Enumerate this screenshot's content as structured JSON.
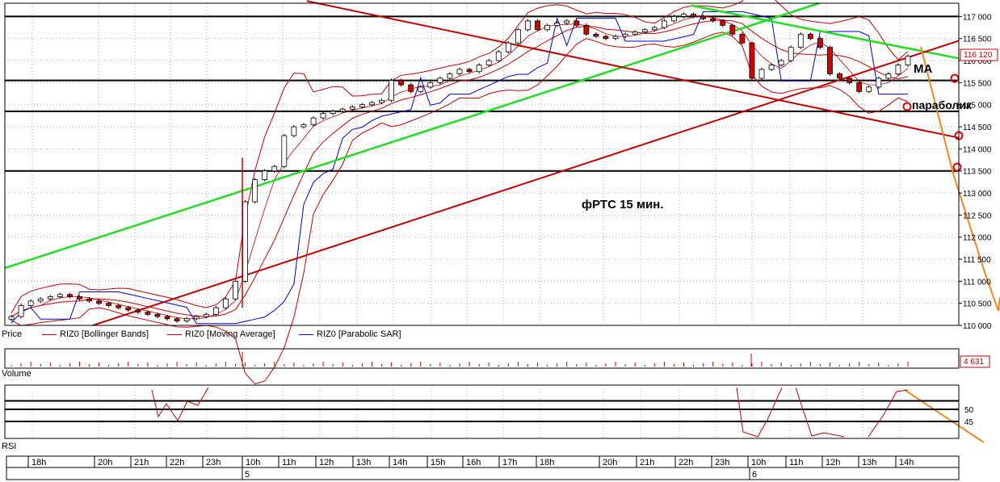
{
  "legend": {
    "price": "Price",
    "bollinger": "RIZ0 [Bollinger Bands]",
    "ma": "RIZ0 [Moving Average]",
    "sar": "RIZ0 [Parabolic SAR]"
  },
  "panes": {
    "volume": "Volume",
    "rsi": "RSI"
  },
  "annotations": {
    "title": "фРТС   15 мин.",
    "ma": "МА",
    "parabolic": "параболик"
  },
  "colors": {
    "up": "#ffffff",
    "down": "#d40000",
    "bollinger": "#c00000",
    "sar": "#0000cc",
    "green_trend": "#22dd22",
    "red_trend": "#c00000",
    "orange_arrow": "#ee8822"
  },
  "price_axis": {
    "ticks": [
      "117 000",
      "116 500",
      "116 000",
      "115 500",
      "115 000",
      "114 500",
      "114 000",
      "113 500",
      "113 000",
      "112 500",
      "112 000",
      "111 500",
      "111 000",
      "110 500",
      "110 000"
    ],
    "last_price_label": "116 120"
  },
  "volume_axis": {
    "last_label": "4 631"
  },
  "rsi_axis": {
    "ticks": [
      "50",
      "45"
    ]
  },
  "time_axis": {
    "hours": [
      "18h",
      "20h",
      "21h",
      "22h",
      "23h",
      "10h",
      "11h",
      "12h",
      "13h",
      "14h",
      "15h",
      "16h",
      "17h",
      "18h",
      "20h",
      "21h",
      "22h",
      "23h",
      "10h",
      "11h",
      "12h",
      "13h",
      "14h"
    ],
    "days": [
      "5",
      "6"
    ]
  },
  "chart_data": {
    "type": "candlestick",
    "title": "фРТС   15 мин.",
    "ylim": [
      110000,
      117300
    ],
    "horizontal_levels": [
      117000,
      115550,
      114850,
      113500
    ],
    "series": [
      {
        "name": "RIZ0 [Bollinger Bands]"
      },
      {
        "name": "RIZ0 [Moving Average]"
      },
      {
        "name": "RIZ0 [Parabolic SAR]"
      }
    ],
    "close_path": [
      110200,
      110450,
      110550,
      110600,
      110650,
      110700,
      110650,
      110600,
      110550,
      110500,
      110450,
      110400,
      110350,
      110300,
      110250,
      110200,
      110150,
      110100,
      110150,
      110200,
      110250,
      110400,
      110600,
      111000,
      112800,
      113300,
      113500,
      113600,
      114300,
      114500,
      114550,
      114700,
      114800,
      114850,
      114900,
      114950,
      115000,
      115050,
      115100,
      115550,
      115450,
      115300,
      115400,
      115500,
      115600,
      115700,
      115800,
      115750,
      115900,
      116000,
      116200,
      116400,
      116700,
      116900,
      116700,
      116800,
      116850,
      116900,
      116800,
      116600,
      116550,
      116500,
      116550,
      116600,
      116650,
      116700,
      116750,
      116900,
      117000,
      117050,
      117000,
      116950,
      116900,
      116800,
      116600,
      116400,
      115600,
      115800,
      115900,
      116000,
      116300,
      116600,
      116500,
      116300,
      115700,
      115600,
      115500,
      115300,
      115400,
      115600,
      115700,
      115900,
      116100
    ]
  }
}
